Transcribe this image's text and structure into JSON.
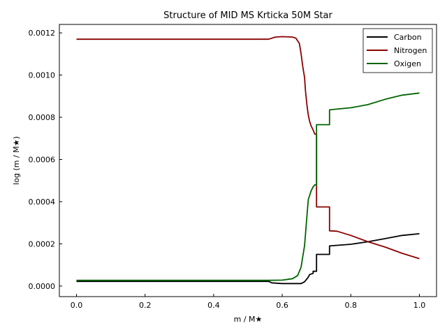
{
  "chart_data": {
    "type": "line",
    "title": "Structure of MID MS Krticka 50M Star",
    "xlabel": "m / M★",
    "ylabel": "log (m / M★)",
    "xlim": [
      -0.05,
      1.05
    ],
    "ylim": [
      -5e-05,
      0.00124
    ],
    "xticks": [
      0.0,
      0.2,
      0.4,
      0.6,
      0.8,
      1.0
    ],
    "xtick_labels": [
      "0.0",
      "0.2",
      "0.4",
      "0.6",
      "0.8",
      "1.0"
    ],
    "yticks": [
      0.0,
      0.0002,
      0.0004,
      0.0006,
      0.0008,
      0.001,
      0.0012
    ],
    "ytick_labels": [
      "0.0000",
      "0.0002",
      "0.0004",
      "0.0006",
      "0.0008",
      "0.0010",
      "0.0012"
    ],
    "grid": false,
    "legend_position": "top-right",
    "series": [
      {
        "name": "Carbon",
        "color": "#000000",
        "x": [
          0.0,
          0.56,
          0.57,
          0.6,
          0.655,
          0.665,
          0.675,
          0.68,
          0.69,
          0.69,
          0.7,
          0.7,
          0.738,
          0.738,
          0.8,
          0.85,
          0.9,
          0.95,
          1.0
        ],
        "y": [
          2.2e-05,
          2.2e-05,
          1.5e-05,
          1.2e-05,
          1.2e-05,
          2e-05,
          4e-05,
          5.5e-05,
          6e-05,
          7e-05,
          7e-05,
          0.00015,
          0.00015,
          0.00019,
          0.000198,
          0.00021,
          0.000225,
          0.00024,
          0.000248
        ]
      },
      {
        "name": "Nitrogen",
        "color": "#8b0000",
        "x": [
          0.0,
          0.56,
          0.58,
          0.6,
          0.63,
          0.64,
          0.65,
          0.655,
          0.66,
          0.665,
          0.668,
          0.672,
          0.676,
          0.68,
          0.684,
          0.69,
          0.695,
          0.7,
          0.7,
          0.738,
          0.738,
          0.76,
          0.8,
          0.85,
          0.9,
          0.95,
          1.0
        ],
        "y": [
          0.00117,
          0.00117,
          0.00118,
          0.001182,
          0.00118,
          0.001175,
          0.00115,
          0.0011,
          0.00104,
          0.00099,
          0.00092,
          0.00086,
          0.00081,
          0.00078,
          0.00076,
          0.00074,
          0.00072,
          0.00072,
          0.000375,
          0.000375,
          0.000262,
          0.00026,
          0.00024,
          0.00021,
          0.000185,
          0.000155,
          0.00013
        ]
      },
      {
        "name": "Oxigen",
        "color": "#006400",
        "x": [
          0.0,
          0.56,
          0.6,
          0.63,
          0.645,
          0.655,
          0.66,
          0.665,
          0.668,
          0.672,
          0.676,
          0.68,
          0.684,
          0.69,
          0.695,
          0.7,
          0.7,
          0.738,
          0.738,
          0.8,
          0.85,
          0.9,
          0.95,
          1.0
        ],
        "y": [
          2.7e-05,
          2.7e-05,
          2.8e-05,
          3.5e-05,
          5e-05,
          9e-05,
          0.00014,
          0.00019,
          0.00025,
          0.00033,
          0.00041,
          0.00043,
          0.00045,
          0.00047,
          0.00048,
          0.00048,
          0.000765,
          0.000765,
          0.000835,
          0.000845,
          0.00086,
          0.000885,
          0.000905,
          0.000915
        ]
      }
    ]
  }
}
